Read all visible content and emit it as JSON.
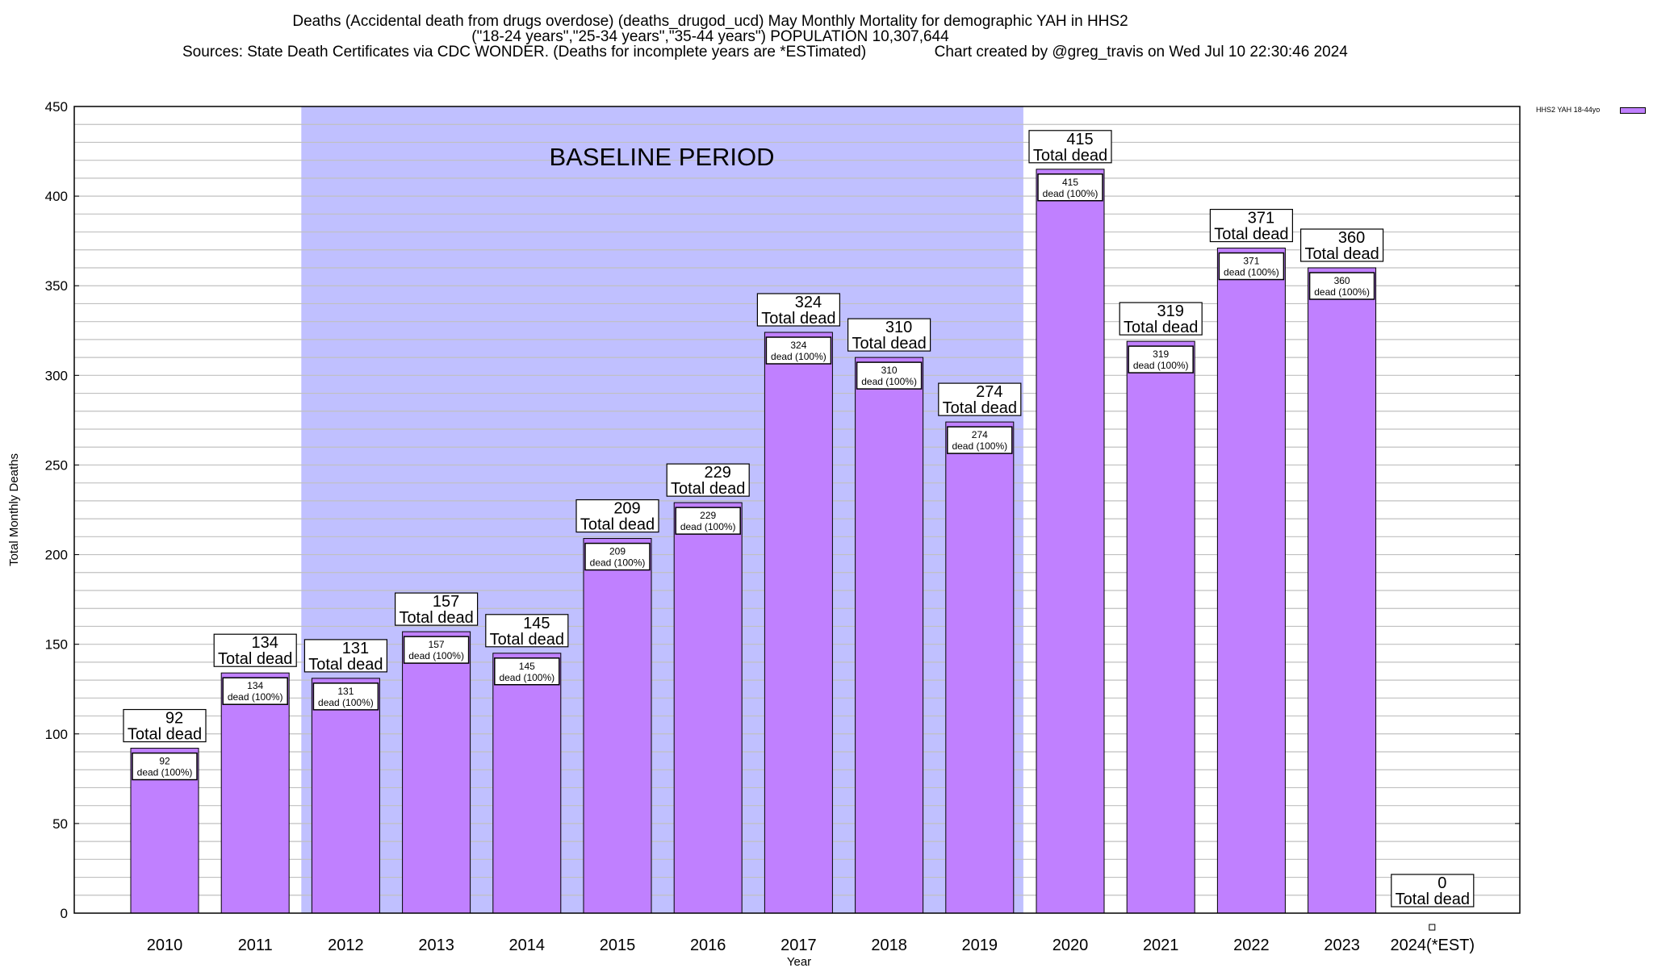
{
  "header": {
    "title_line1": "Deaths (Accidental death from drugs overdose) (deaths_drugod_ucd) May Monthly Mortality for demographic YAH in HHS2",
    "title_line2": "(\"18-24 years\",\"25-34 years\",\"35-44 years\") POPULATION 10,307,644",
    "title_line3": "Sources: State Death Certificates via CDC WONDER. (Deaths for incomplete years are *ESTimated)                Chart created by @greg_travis on Wed Jul 10 22:30:46 2024"
  },
  "colors": {
    "bar": "#c080ff",
    "baseline_shade": "#c0c0ff",
    "grid": "#c0c0c0"
  },
  "chart_data": {
    "type": "bar",
    "title": "Deaths (Accidental death from drugs overdose) (deaths_drugod_ucd) May Monthly Mortality for demographic YAH in HHS2",
    "xlabel": "Year",
    "ylabel": "Total Monthly Deaths",
    "ylim": [
      0,
      450
    ],
    "yticks": [
      0,
      50,
      100,
      150,
      200,
      250,
      300,
      350,
      400,
      450
    ],
    "grid": true,
    "legend_placement": "top-right",
    "categories": [
      "2010",
      "2011",
      "2012",
      "2013",
      "2014",
      "2015",
      "2016",
      "2017",
      "2018",
      "2019",
      "2020",
      "2021",
      "2022",
      "2023",
      "2024(*EST)"
    ],
    "series": [
      {
        "name": "HHS2 YAH 18-44yo",
        "values": [
          92,
          134,
          131,
          157,
          145,
          209,
          229,
          324,
          310,
          274,
          415,
          319,
          371,
          360,
          0
        ]
      }
    ],
    "total_label_suffix": "Total dead",
    "inner_label_suffix": "dead (100%)",
    "annotation": {
      "text": "BASELINE PERIOD",
      "start_category": "2012",
      "end_category": "2019"
    }
  }
}
